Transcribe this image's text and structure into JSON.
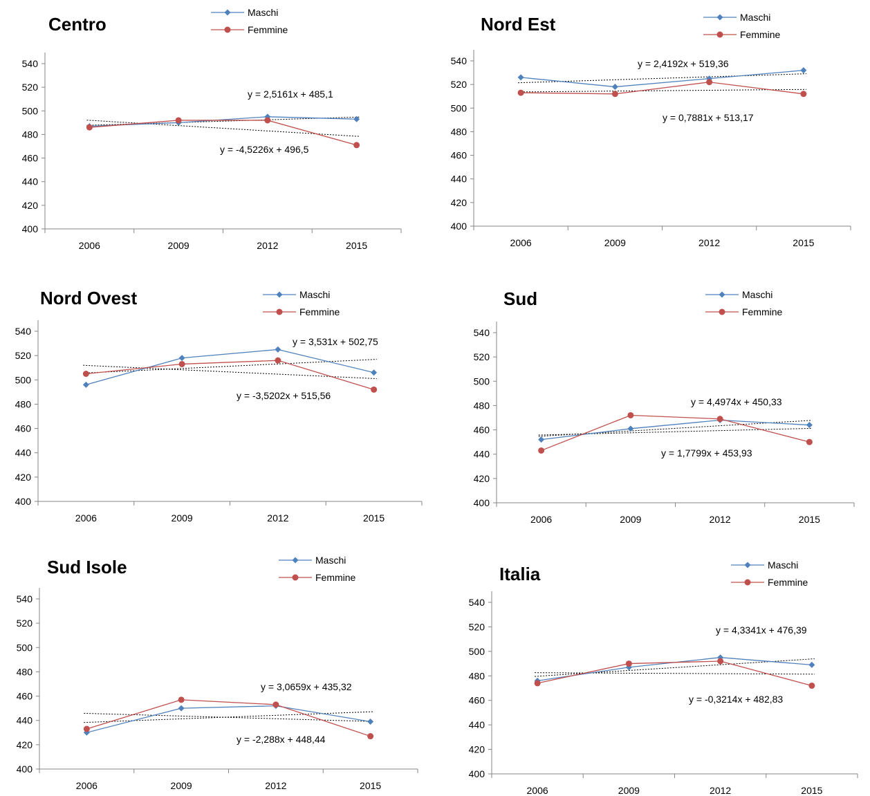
{
  "colors": {
    "maschi": "#4f81bd",
    "femmine": "#c0504d",
    "trend": "#000000",
    "axis": "#868686"
  },
  "chart_data": [
    {
      "type": "line",
      "title": "Centro",
      "categories": [
        "2006",
        "2009",
        "2012",
        "2015"
      ],
      "ylim": [
        400,
        540
      ],
      "yticks": [
        "400",
        "420",
        "440",
        "460",
        "480",
        "500",
        "520",
        "540"
      ],
      "legend_position": "top",
      "grid": false,
      "series": [
        {
          "name": "Maschi",
          "values": [
            487,
            490,
            495,
            493
          ]
        },
        {
          "name": "Femmine",
          "values": [
            486,
            492,
            492,
            471
          ]
        }
      ],
      "equations": [
        "y = 2,5161x + 485,1",
        "y = -4,5226x + 496,5"
      ]
    },
    {
      "type": "line",
      "title": "Nord Est",
      "categories": [
        "2006",
        "2009",
        "2012",
        "2015"
      ],
      "ylim": [
        400,
        540
      ],
      "yticks": [
        "400",
        "420",
        "440",
        "460",
        "480",
        "500",
        "520",
        "540"
      ],
      "legend_position": "top-right",
      "grid": false,
      "series": [
        {
          "name": "Maschi",
          "values": [
            526,
            518,
            525,
            532
          ]
        },
        {
          "name": "Femmine",
          "values": [
            513,
            512,
            522,
            512
          ]
        }
      ],
      "equations": [
        "y = 2,4192x + 519,36",
        "y = 0,7881x + 513,17"
      ]
    },
    {
      "type": "line",
      "title": "Nord Ovest",
      "categories": [
        "2006",
        "2009",
        "2012",
        "2015"
      ],
      "ylim": [
        400,
        540
      ],
      "yticks": [
        "400",
        "420",
        "440",
        "460",
        "480",
        "500",
        "520",
        "540"
      ],
      "legend_position": "top-right",
      "grid": false,
      "series": [
        {
          "name": "Maschi",
          "values": [
            496,
            518,
            525,
            506
          ]
        },
        {
          "name": "Femmine",
          "values": [
            505,
            513,
            516,
            492
          ]
        }
      ],
      "equations": [
        "y = 3,531x + 502,75",
        "y = -3,5202x + 515,56"
      ]
    },
    {
      "type": "line",
      "title": "Sud",
      "categories": [
        "2006",
        "2009",
        "2012",
        "2015"
      ],
      "ylim": [
        400,
        540
      ],
      "yticks": [
        "400",
        "420",
        "440",
        "460",
        "480",
        "500",
        "520",
        "540"
      ],
      "legend_position": "top-right",
      "grid": false,
      "series": [
        {
          "name": "Maschi",
          "values": [
            452,
            461,
            468,
            464
          ]
        },
        {
          "name": "Femmine",
          "values": [
            443,
            472,
            469,
            450
          ]
        }
      ],
      "equations": [
        "y = 4,4974x + 450,33",
        "y = 1,7799x + 453,93"
      ]
    },
    {
      "type": "line",
      "title": "Sud Isole",
      "categories": [
        "2006",
        "2009",
        "2012",
        "2015"
      ],
      "ylim": [
        400,
        540
      ],
      "yticks": [
        "400",
        "420",
        "440",
        "460",
        "480",
        "500",
        "520",
        "540"
      ],
      "legend_position": "top-right",
      "grid": false,
      "series": [
        {
          "name": "Maschi",
          "values": [
            430,
            450,
            452,
            439
          ]
        },
        {
          "name": "Femmine",
          "values": [
            433,
            457,
            453,
            427
          ]
        }
      ],
      "equations": [
        "y = 3,0659x + 435,32",
        "y = -2,288x + 448,44"
      ]
    },
    {
      "type": "line",
      "title": "Italia",
      "categories": [
        "2006",
        "2009",
        "2012",
        "2015"
      ],
      "ylim": [
        400,
        540
      ],
      "yticks": [
        "400",
        "420",
        "440",
        "460",
        "480",
        "500",
        "520",
        "540"
      ],
      "legend_position": "top-right",
      "grid": false,
      "series": [
        {
          "name": "Maschi",
          "values": [
            476,
            487,
            495,
            489
          ]
        },
        {
          "name": "Femmine",
          "values": [
            474,
            490,
            492,
            472
          ]
        }
      ],
      "equations": [
        "y = 4,3341x + 476,39",
        "y = -0,3214x + 482,83"
      ]
    }
  ]
}
